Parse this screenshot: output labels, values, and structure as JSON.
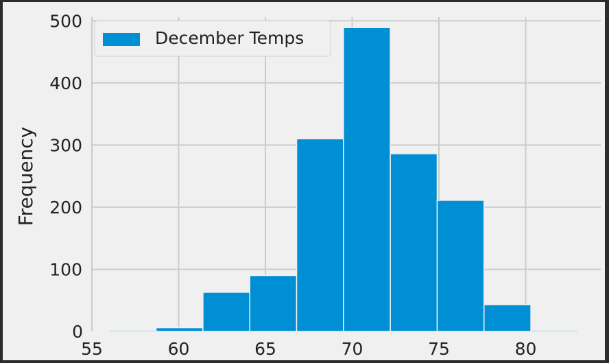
{
  "chart_data": {
    "type": "bar",
    "title": "",
    "xlabel": "",
    "ylabel": "Frequency",
    "xlim": [
      56,
      83
    ],
    "ylim": [
      0,
      510
    ],
    "xticks": [
      55,
      60,
      65,
      70,
      75,
      80
    ],
    "yticks": [
      0,
      100,
      200,
      300,
      400,
      500
    ],
    "grid": true,
    "legend": "top-left",
    "series": [
      {
        "name": "December Temps",
        "color": "#008fd5",
        "bins": [
          {
            "x0": 56.0,
            "x1": 58.7,
            "value": 2
          },
          {
            "x0": 58.7,
            "x1": 61.4,
            "value": 6
          },
          {
            "x0": 61.4,
            "x1": 64.1,
            "value": 63
          },
          {
            "x0": 64.1,
            "x1": 66.8,
            "value": 90
          },
          {
            "x0": 66.8,
            "x1": 69.5,
            "value": 310
          },
          {
            "x0": 69.5,
            "x1": 72.2,
            "value": 489
          },
          {
            "x0": 72.2,
            "x1": 74.9,
            "value": 286
          },
          {
            "x0": 74.9,
            "x1": 77.6,
            "value": 211
          },
          {
            "x0": 77.6,
            "x1": 80.3,
            "value": 43
          },
          {
            "x0": 80.3,
            "x1": 83.0,
            "value": 2
          }
        ]
      }
    ]
  }
}
